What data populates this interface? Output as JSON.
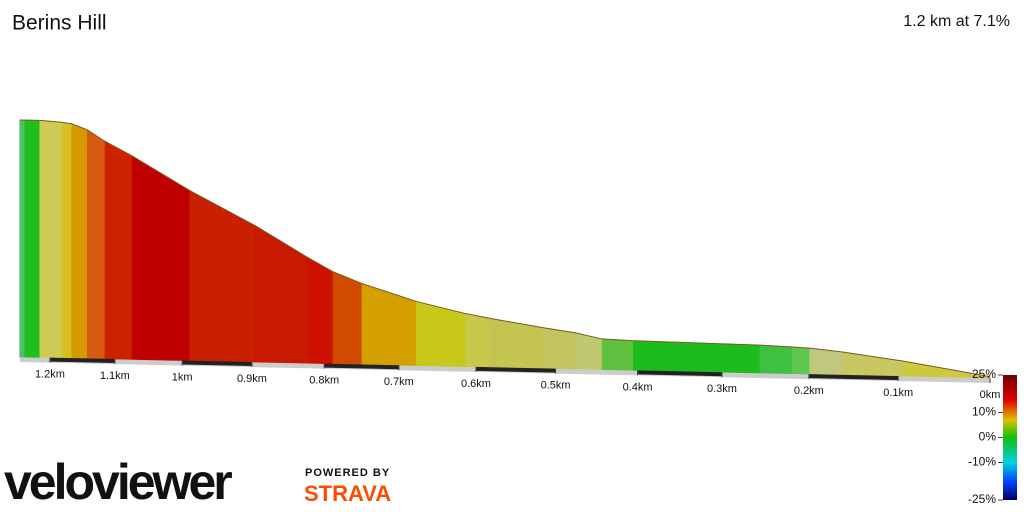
{
  "chart_data": {
    "type": "elevation",
    "title": "Berins Hill",
    "subtitle": "1.2 km at 7.1%",
    "x": [
      1.248,
      1.24,
      1.216,
      1.181,
      1.166,
      1.142,
      1.115,
      1.074,
      0.989,
      0.896,
      0.823,
      0.788,
      0.749,
      0.677,
      0.613,
      0.582,
      0.516,
      0.476,
      0.443,
      0.405,
      0.256,
      0.219,
      0.199,
      0.162,
      0.095,
      0
    ],
    "values": [
      85,
      85,
      85,
      84.5,
      84,
      82,
      78,
      73,
      61,
      49,
      38,
      33,
      29,
      23,
      19,
      17.5,
      14.6,
      13,
      11,
      10.6,
      10,
      9.6,
      9.3,
      8.2,
      5.4,
      0.5
    ],
    "segment_colors": [
      "#4fc06a",
      "#1fbf1f",
      "#cccc55",
      "#d4c020",
      "#d69a00",
      "#d85a10",
      "#cc2200",
      "#c00000",
      "#c82000",
      "#c81a00",
      "#cc1100",
      "#d04a00",
      "#d4a000",
      "#c8c81a",
      "#c8c84a",
      "#c4c450",
      "#c4c460",
      "#c0c870",
      "#60c040",
      "#1cbc1c",
      "#40c040",
      "#60c850",
      "#c0c880",
      "#c8c860",
      "#ccc840"
    ],
    "ylim": [
      0,
      85
    ],
    "xticks": [
      {
        "value": 1.2,
        "label": "1.2km"
      },
      {
        "value": 1.1,
        "label": "1.1km"
      },
      {
        "value": 1,
        "label": "1km"
      },
      {
        "value": 0.9,
        "label": "0.9km"
      },
      {
        "value": 0.8,
        "label": "0.8km"
      },
      {
        "value": 0.7,
        "label": "0.7km"
      },
      {
        "value": 0.6,
        "label": "0.6km"
      },
      {
        "value": 0.5,
        "label": "0.5km"
      },
      {
        "value": 0.4,
        "label": "0.4km"
      },
      {
        "value": 0.3,
        "label": "0.3km"
      },
      {
        "value": 0.2,
        "label": "0.2km"
      },
      {
        "value": 0.1,
        "label": "0.1km"
      },
      {
        "value": 0,
        "label": "0km"
      }
    ],
    "legend_ticks": [
      {
        "value": 25,
        "label": "25%"
      },
      {
        "value": 10,
        "label": "10%"
      },
      {
        "value": 0,
        "label": "0%"
      },
      {
        "value": -10,
        "label": "-10%"
      },
      {
        "value": -25,
        "label": "-25%"
      }
    ],
    "colorscale": [
      [
        25,
        "#700000"
      ],
      [
        15,
        "#e00000"
      ],
      [
        7,
        "#e0c000"
      ],
      [
        0,
        "#10c010"
      ],
      [
        -10,
        "#00d0e0"
      ],
      [
        -18,
        "#0040ff"
      ],
      [
        -25,
        "#000060"
      ]
    ]
  },
  "branding": {
    "logo": "veloviewer",
    "powered_by": "POWERED BY",
    "partner": "STRAVA"
  }
}
